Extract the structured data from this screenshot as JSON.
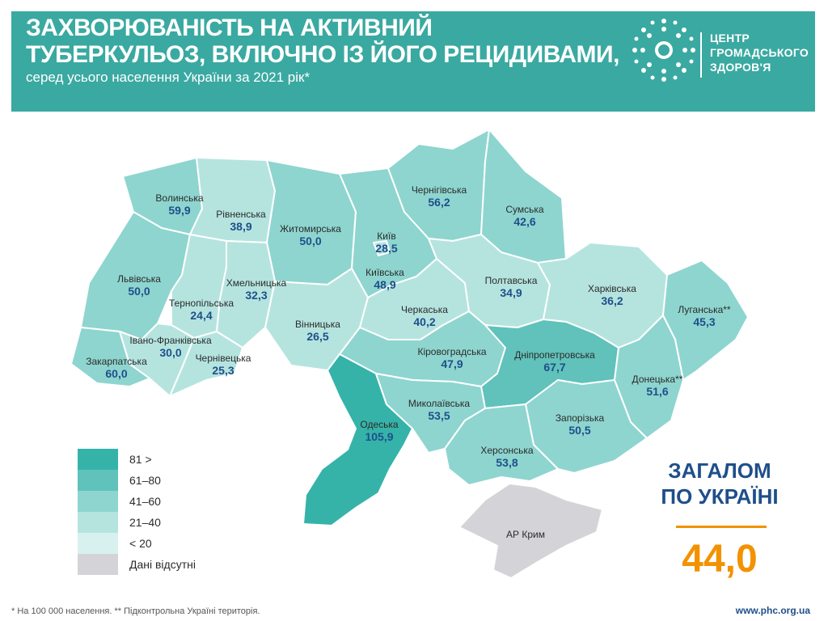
{
  "header": {
    "title_line1": "ЗАХВОРЮВАНІСТЬ НА АКТИВНИЙ",
    "title_line2": "ТУБЕРКУЛЬОЗ, ВКЛЮЧНО ІЗ ЙОГО РЕЦИДИВАМИ,",
    "subtitle": "серед усього населення України за 2021 рік*"
  },
  "logo": {
    "line1": "ЦЕНТР",
    "line2": "ГРОМАДСЬКОГО",
    "line3": "ЗДОРОВ'Я",
    "icon": "public-health-center-logo-icon"
  },
  "colors": {
    "header_bg": "#3aa9a1",
    "class_81_plus": "#35b3a9",
    "class_61_80": "#60c2ba",
    "class_41_60": "#8ed5cf",
    "class_21_40": "#b5e4df",
    "class_lt_20": "#d9f1ee",
    "no_data": "#d4d4d8",
    "accent_total": "#f39200",
    "value_text": "#1f4f8a"
  },
  "regions": [
    {
      "name": "Волинська",
      "value": "59,9"
    },
    {
      "name": "Рівненська",
      "value": "38,9"
    },
    {
      "name": "Житомирська",
      "value": "50,0"
    },
    {
      "name": "Київ",
      "value": "28,5"
    },
    {
      "name": "Київська",
      "value": "48,9"
    },
    {
      "name": "Чернігівська",
      "value": "56,2"
    },
    {
      "name": "Сумська",
      "value": "42,6"
    },
    {
      "name": "Львівська",
      "value": "50,0"
    },
    {
      "name": "Тернопільська",
      "value": "24,4"
    },
    {
      "name": "Хмельницька",
      "value": "32,3"
    },
    {
      "name": "Вінницька",
      "value": "26,5"
    },
    {
      "name": "Черкаська",
      "value": "40,2"
    },
    {
      "name": "Полтавська",
      "value": "34,9"
    },
    {
      "name": "Харківська",
      "value": "36,2"
    },
    {
      "name": "Луганська**",
      "value": "45,3"
    },
    {
      "name": "Івано-Франківська",
      "value": "30,0"
    },
    {
      "name": "Закарпатська",
      "value": "60,0"
    },
    {
      "name": "Чернівецька",
      "value": "25,3"
    },
    {
      "name": "Кіровоградська",
      "value": "47,9"
    },
    {
      "name": "Дніпропетровська",
      "value": "67,7"
    },
    {
      "name": "Донецька**",
      "value": "51,6"
    },
    {
      "name": "Одеська",
      "value": "105,9"
    },
    {
      "name": "Миколаївська",
      "value": "53,5"
    },
    {
      "name": "Запорізька",
      "value": "50,5"
    },
    {
      "name": "Херсонська",
      "value": "53,8"
    },
    {
      "name": "АР Крим",
      "value": ""
    }
  ],
  "legend": [
    {
      "label": "81 >",
      "color": "#35b3a9"
    },
    {
      "label": "61–80",
      "color": "#60c2ba"
    },
    {
      "label": "41–60",
      "color": "#8ed5cf"
    },
    {
      "label": "21–40",
      "color": "#b5e4df"
    },
    {
      "label": "< 20",
      "color": "#d9f1ee"
    },
    {
      "label": "Дані відсутні",
      "color": "#d4d4d8"
    }
  ],
  "total": {
    "title_line1": "ЗАГАЛОМ",
    "title_line2": "ПО УКРАЇНІ",
    "value": "44,0"
  },
  "footer": {
    "note": "* На 100 000 населення. ** Підконтрольна Україні територія.",
    "url": "www.phc.org.ua"
  }
}
